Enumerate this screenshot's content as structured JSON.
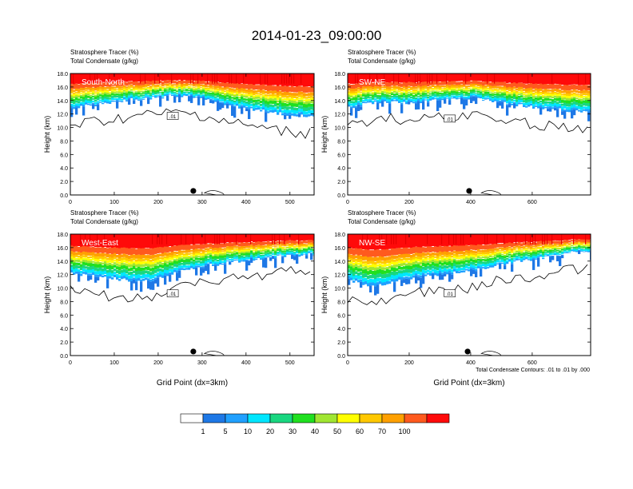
{
  "figure": {
    "title": "2014-01-23_09:00:00",
    "footnote": "Total Condensate Contours: .01 to .01 by .000"
  },
  "colorbar": {
    "colors": [
      "#ffffff",
      "#1e78e6",
      "#20a0ff",
      "#00e6ff",
      "#19d780",
      "#20e020",
      "#a0e632",
      "#ffff00",
      "#ffc800",
      "#ffa000",
      "#ff5a1e",
      "#ff0a0a"
    ],
    "labels": [
      "1",
      "5",
      "10",
      "20",
      "30",
      "40",
      "50",
      "60",
      "70",
      "100"
    ]
  },
  "chart_data": [
    {
      "type": "heatmap",
      "panel": "South-North",
      "title_lines": [
        "Stratosphere Tracer   (%)",
        "Total Condensate   (g/kg)"
      ],
      "ylabel": "Height (km)",
      "xlabel": "",
      "xlim": [
        0,
        555
      ],
      "ylim": [
        0,
        18
      ],
      "xticks": [
        "0",
        "100",
        "200",
        "300",
        "400",
        "500"
      ],
      "xtick_values": [
        0,
        100,
        200,
        300,
        400,
        500
      ],
      "yticks": [
        "0.0",
        "2.0",
        "4.0",
        "6.0",
        "8.0",
        "10.0",
        "12.0",
        "14.0",
        "16.0",
        "18.0"
      ],
      "tracer_bottom_km": [
        [
          0,
          12.9
        ],
        [
          60,
          13.4
        ],
        [
          120,
          14.0
        ],
        [
          180,
          14.4
        ],
        [
          240,
          14.7
        ],
        [
          300,
          14.4
        ],
        [
          360,
          13.3
        ],
        [
          420,
          12.6
        ],
        [
          480,
          12.0
        ],
        [
          555,
          11.7
        ]
      ],
      "contour_label": ".01",
      "marker_x": 280
    },
    {
      "type": "heatmap",
      "panel": "SW-NE",
      "title_lines": [
        "Stratosphere Tracer   (%)",
        "Total Condensate   (g/kg)"
      ],
      "ylabel": "Height (km)",
      "xlabel": "",
      "xlim": [
        0,
        790
      ],
      "ylim": [
        0,
        18
      ],
      "xticks": [
        "0",
        "200",
        "400",
        "600"
      ],
      "xtick_values": [
        0,
        200,
        400,
        600
      ],
      "yticks": [
        "0.0",
        "2.0",
        "4.0",
        "6.0",
        "8.0",
        "10.0",
        "12.0",
        "14.0",
        "16.0",
        "18.0"
      ],
      "tracer_bottom_km": [
        [
          0,
          13.0
        ],
        [
          100,
          13.8
        ],
        [
          200,
          13.6
        ],
        [
          300,
          14.2
        ],
        [
          400,
          14.4
        ],
        [
          500,
          13.6
        ],
        [
          600,
          13.0
        ],
        [
          700,
          12.6
        ],
        [
          790,
          12.2
        ]
      ],
      "contour_label": ".01",
      "marker_x": 395
    },
    {
      "type": "heatmap",
      "panel": "West-East",
      "title_lines": [
        "Stratosphere Tracer   (%)",
        "Total Condensate   (g/kg)"
      ],
      "ylabel": "Height (km)",
      "xlabel": "Grid Point (dx=3km)",
      "xlim": [
        0,
        555
      ],
      "ylim": [
        0,
        18
      ],
      "xticks": [
        "0",
        "100",
        "200",
        "300",
        "400",
        "500"
      ],
      "xtick_values": [
        0,
        100,
        200,
        300,
        400,
        500
      ],
      "yticks": [
        "0.0",
        "2.0",
        "4.0",
        "6.0",
        "8.0",
        "10.0",
        "12.0",
        "14.0",
        "16.0",
        "18.0"
      ],
      "tracer_bottom_km": [
        [
          0,
          12.2
        ],
        [
          60,
          11.7
        ],
        [
          120,
          11.2
        ],
        [
          180,
          11.0
        ],
        [
          240,
          12.3
        ],
        [
          300,
          13.2
        ],
        [
          360,
          13.8
        ],
        [
          420,
          14.3
        ],
        [
          480,
          14.7
        ],
        [
          555,
          15.0
        ]
      ],
      "contour_label": ".01",
      "marker_x": 280
    },
    {
      "type": "heatmap",
      "panel": "NW-SE",
      "title_lines": [
        "Stratosphere Tracer   (%)",
        "Total Condensate   (g/kg)"
      ],
      "ylabel": "Height (km)",
      "xlabel": "Grid Point (dx=3km)",
      "xlim": [
        0,
        790
      ],
      "ylim": [
        0,
        18
      ],
      "xticks": [
        "0",
        "200",
        "400",
        "600"
      ],
      "xtick_values": [
        0,
        200,
        400,
        600
      ],
      "yticks": [
        "0.0",
        "2.0",
        "4.0",
        "6.0",
        "8.0",
        "10.0",
        "12.0",
        "14.0",
        "16.0",
        "18.0"
      ],
      "tracer_bottom_km": [
        [
          0,
          11.2
        ],
        [
          80,
          10.2
        ],
        [
          160,
          11.0
        ],
        [
          240,
          11.8
        ],
        [
          320,
          12.1
        ],
        [
          400,
          12.6
        ],
        [
          480,
          13.4
        ],
        [
          560,
          14.0
        ],
        [
          640,
          14.6
        ],
        [
          720,
          15.2
        ],
        [
          790,
          15.6
        ]
      ],
      "contour_label": ".01",
      "marker_x": 390
    }
  ]
}
